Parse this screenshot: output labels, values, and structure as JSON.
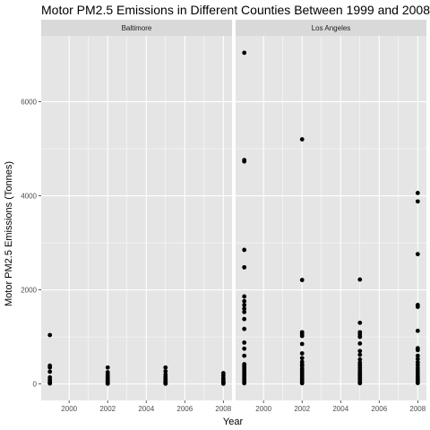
{
  "chart_data": {
    "type": "scatter",
    "title": "Motor PM2.5 Emissions in Different Counties Between 1999 and 2008",
    "xlabel": "Year",
    "ylabel": "Motor PM2.5 Emissions (Tonnes)",
    "xlim": [
      1998.55,
      2008.45
    ],
    "ylim": [
      -350,
      7400
    ],
    "x_ticks": [
      2000,
      2002,
      2004,
      2006,
      2008
    ],
    "x_tick_labels": [
      "2000",
      "2002",
      "2004",
      "2006",
      "2008"
    ],
    "y_ticks": [
      0,
      2000,
      4000,
      6000
    ],
    "y_tick_labels": [
      "0",
      "2000",
      "4000",
      "6000"
    ],
    "grid": true,
    "legend": "none",
    "colors": {
      "panel_bg": "#e5e5e5",
      "grid": "#ffffff",
      "strip_bg": "#d9d9d9",
      "point": "#000000"
    },
    "facets": [
      {
        "name": "Baltimore",
        "points": [
          {
            "x": 1999,
            "y": 1040
          },
          {
            "x": 1999,
            "y": 390
          },
          {
            "x": 1999,
            "y": 350
          },
          {
            "x": 1999,
            "y": 260
          },
          {
            "x": 1999,
            "y": 140
          },
          {
            "x": 1999,
            "y": 90
          },
          {
            "x": 1999,
            "y": 60
          },
          {
            "x": 1999,
            "y": 30
          },
          {
            "x": 1999,
            "y": 10
          },
          {
            "x": 2002,
            "y": 350
          },
          {
            "x": 2002,
            "y": 250
          },
          {
            "x": 2002,
            "y": 200
          },
          {
            "x": 2002,
            "y": 160
          },
          {
            "x": 2002,
            "y": 130
          },
          {
            "x": 2002,
            "y": 100
          },
          {
            "x": 2002,
            "y": 80
          },
          {
            "x": 2002,
            "y": 60
          },
          {
            "x": 2002,
            "y": 40
          },
          {
            "x": 2002,
            "y": 20
          },
          {
            "x": 2002,
            "y": 5
          },
          {
            "x": 2005,
            "y": 350
          },
          {
            "x": 2005,
            "y": 270
          },
          {
            "x": 2005,
            "y": 200
          },
          {
            "x": 2005,
            "y": 150
          },
          {
            "x": 2005,
            "y": 110
          },
          {
            "x": 2005,
            "y": 80
          },
          {
            "x": 2005,
            "y": 60
          },
          {
            "x": 2005,
            "y": 40
          },
          {
            "x": 2005,
            "y": 20
          },
          {
            "x": 2005,
            "y": 5
          },
          {
            "x": 2008,
            "y": 230
          },
          {
            "x": 2008,
            "y": 180
          },
          {
            "x": 2008,
            "y": 130
          },
          {
            "x": 2008,
            "y": 100
          },
          {
            "x": 2008,
            "y": 70
          },
          {
            "x": 2008,
            "y": 50
          },
          {
            "x": 2008,
            "y": 30
          },
          {
            "x": 2008,
            "y": 15
          },
          {
            "x": 2008,
            "y": 5
          }
        ]
      },
      {
        "name": "Los Angeles",
        "points": [
          {
            "x": 1999,
            "y": 7040
          },
          {
            "x": 1999,
            "y": 4760
          },
          {
            "x": 1999,
            "y": 4730
          },
          {
            "x": 1999,
            "y": 2850
          },
          {
            "x": 1999,
            "y": 2480
          },
          {
            "x": 1999,
            "y": 1860
          },
          {
            "x": 1999,
            "y": 1760
          },
          {
            "x": 1999,
            "y": 1680
          },
          {
            "x": 1999,
            "y": 1600
          },
          {
            "x": 1999,
            "y": 1530
          },
          {
            "x": 1999,
            "y": 1380
          },
          {
            "x": 1999,
            "y": 1170
          },
          {
            "x": 1999,
            "y": 880
          },
          {
            "x": 1999,
            "y": 750
          },
          {
            "x": 1999,
            "y": 600
          },
          {
            "x": 1999,
            "y": 420
          },
          {
            "x": 1999,
            "y": 380
          },
          {
            "x": 1999,
            "y": 340
          },
          {
            "x": 1999,
            "y": 300
          },
          {
            "x": 1999,
            "y": 260
          },
          {
            "x": 1999,
            "y": 220
          },
          {
            "x": 1999,
            "y": 180
          },
          {
            "x": 1999,
            "y": 140
          },
          {
            "x": 1999,
            "y": 100
          },
          {
            "x": 1999,
            "y": 70
          },
          {
            "x": 1999,
            "y": 40
          },
          {
            "x": 1999,
            "y": 15
          },
          {
            "x": 2002,
            "y": 5200
          },
          {
            "x": 2002,
            "y": 2210
          },
          {
            "x": 2002,
            "y": 1100
          },
          {
            "x": 2002,
            "y": 1060
          },
          {
            "x": 2002,
            "y": 1020
          },
          {
            "x": 2002,
            "y": 850
          },
          {
            "x": 2002,
            "y": 650
          },
          {
            "x": 2002,
            "y": 550
          },
          {
            "x": 2002,
            "y": 470
          },
          {
            "x": 2002,
            "y": 420
          },
          {
            "x": 2002,
            "y": 380
          },
          {
            "x": 2002,
            "y": 330
          },
          {
            "x": 2002,
            "y": 290
          },
          {
            "x": 2002,
            "y": 250
          },
          {
            "x": 2002,
            "y": 210
          },
          {
            "x": 2002,
            "y": 170
          },
          {
            "x": 2002,
            "y": 130
          },
          {
            "x": 2002,
            "y": 100
          },
          {
            "x": 2002,
            "y": 70
          },
          {
            "x": 2002,
            "y": 40
          },
          {
            "x": 2002,
            "y": 15
          },
          {
            "x": 2005,
            "y": 2220
          },
          {
            "x": 2005,
            "y": 1300
          },
          {
            "x": 2005,
            "y": 1100
          },
          {
            "x": 2005,
            "y": 1050
          },
          {
            "x": 2005,
            "y": 1000
          },
          {
            "x": 2005,
            "y": 860
          },
          {
            "x": 2005,
            "y": 700
          },
          {
            "x": 2005,
            "y": 620
          },
          {
            "x": 2005,
            "y": 520
          },
          {
            "x": 2005,
            "y": 450
          },
          {
            "x": 2005,
            "y": 400
          },
          {
            "x": 2005,
            "y": 350
          },
          {
            "x": 2005,
            "y": 300
          },
          {
            "x": 2005,
            "y": 260
          },
          {
            "x": 2005,
            "y": 220
          },
          {
            "x": 2005,
            "y": 180
          },
          {
            "x": 2005,
            "y": 140
          },
          {
            "x": 2005,
            "y": 100
          },
          {
            "x": 2005,
            "y": 70
          },
          {
            "x": 2005,
            "y": 40
          },
          {
            "x": 2005,
            "y": 15
          },
          {
            "x": 2008,
            "y": 4060
          },
          {
            "x": 2008,
            "y": 3880
          },
          {
            "x": 2008,
            "y": 2760
          },
          {
            "x": 2008,
            "y": 1680
          },
          {
            "x": 2008,
            "y": 1640
          },
          {
            "x": 2008,
            "y": 1130
          },
          {
            "x": 2008,
            "y": 760
          },
          {
            "x": 2008,
            "y": 720
          },
          {
            "x": 2008,
            "y": 600
          },
          {
            "x": 2008,
            "y": 530
          },
          {
            "x": 2008,
            "y": 460
          },
          {
            "x": 2008,
            "y": 400
          },
          {
            "x": 2008,
            "y": 340
          },
          {
            "x": 2008,
            "y": 290
          },
          {
            "x": 2008,
            "y": 240
          },
          {
            "x": 2008,
            "y": 190
          },
          {
            "x": 2008,
            "y": 150
          },
          {
            "x": 2008,
            "y": 110
          },
          {
            "x": 2008,
            "y": 80
          },
          {
            "x": 2008,
            "y": 50
          },
          {
            "x": 2008,
            "y": 20
          }
        ]
      }
    ]
  }
}
